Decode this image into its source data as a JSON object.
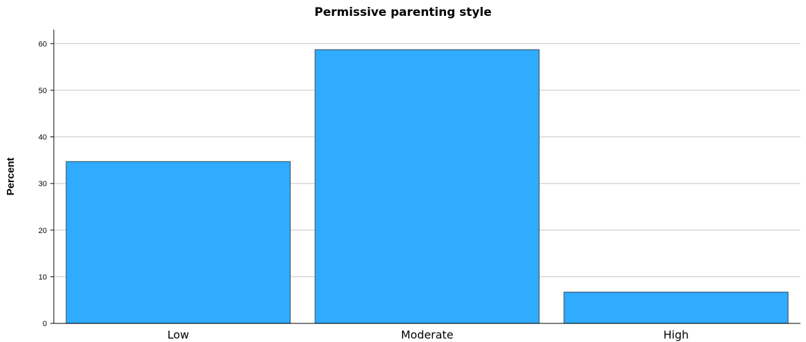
{
  "chart_data": {
    "type": "bar",
    "title": "Permissive parenting style",
    "xlabel": "",
    "ylabel": "Percent",
    "categories": [
      "Low",
      "Moderate",
      "High"
    ],
    "values": [
      34.7,
      58.7,
      6.7
    ],
    "ylim": [
      0,
      63
    ],
    "yticks": [
      0,
      10,
      20,
      30,
      40,
      50,
      60
    ],
    "grid": "horizontal",
    "bar_color": "#30ABFF",
    "bar_edge_color": "#3A5A70",
    "grid_color": "#CFCFCF",
    "axis_color": "#000000"
  }
}
